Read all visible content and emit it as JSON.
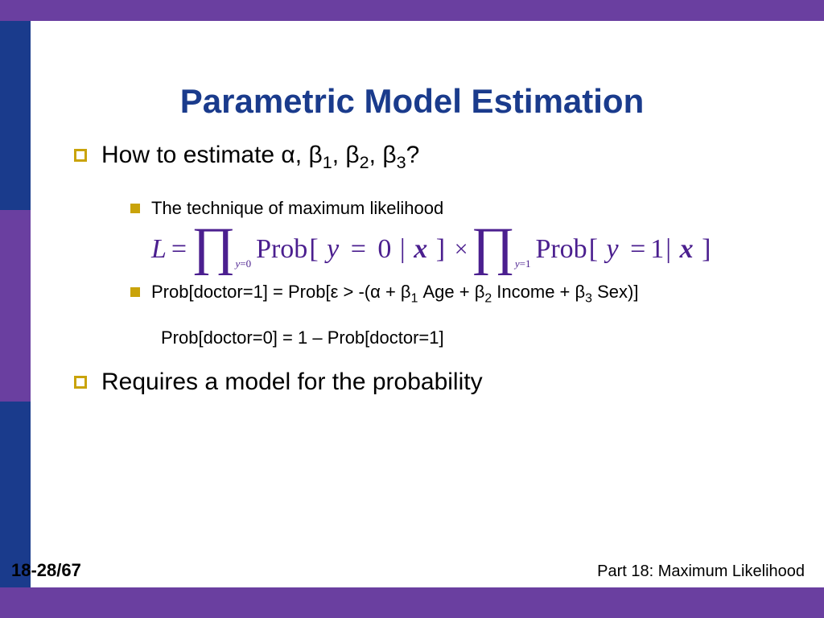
{
  "colors": {
    "purple": "#6a3fa0",
    "navy": "#1a3b8c",
    "bullet_gold": "#c9a30a",
    "formula_purple": "#4b1f8f",
    "text": "#000000",
    "background": "#ffffff"
  },
  "layout": {
    "slide_width": 1024,
    "slide_height": 768,
    "topbar_height": 26,
    "leftbar_width": 38,
    "bottombar_height": 38
  },
  "title": "Parametric Model Estimation",
  "bullets": {
    "level1": [
      {
        "text_prefix": "How to estimate ",
        "params": [
          "α",
          "β",
          "β",
          "β"
        ],
        "param_subs": [
          "",
          "1",
          "2",
          "3"
        ],
        "suffix": "?"
      },
      {
        "text": "Requires a model for the probability"
      }
    ],
    "level2": [
      {
        "text": "The technique of maximum likelihood"
      },
      {
        "prefix": "Prob[doctor=1] = Prob[ε > -(α + β",
        "parts": [
          {
            "sub": "1",
            "after": " Age + β"
          },
          {
            "sub": "2",
            "after": " Income + β"
          },
          {
            "sub": "3",
            "after": " Sex)]"
          }
        ]
      }
    ],
    "plain": "Prob[doctor=0]  =  1 – Prob[doctor=1]"
  },
  "formula": {
    "L_symbol": "L",
    "product1_sub": "y=0",
    "product2_sub": "y=1",
    "prob_label": "Prob",
    "term1": "[ y = 0 | x ]",
    "term2": "[ y = 1 | x ]"
  },
  "page_number": "18-28/67",
  "footer": "Part 18: Maximum Likelihood"
}
